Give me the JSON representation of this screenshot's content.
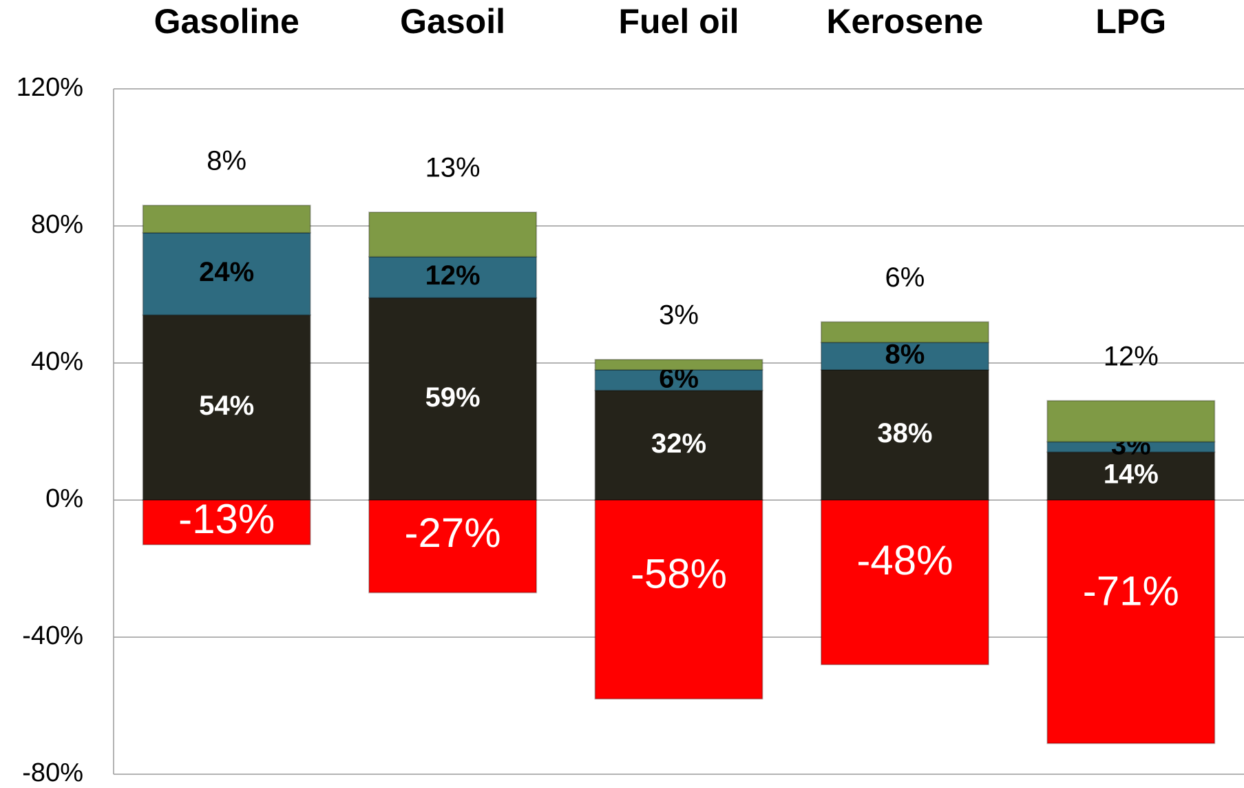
{
  "chart_data": {
    "type": "stacked_bar",
    "categories": [
      "Gasoline",
      "Gasoil",
      "Fuel oil",
      "Kerosene",
      "LPG"
    ],
    "series": [
      {
        "color": "#25231a",
        "values": [
          54,
          59,
          32,
          38,
          14
        ],
        "value_labels": [
          "54%",
          "59%",
          "32%",
          "38%",
          "14%"
        ]
      },
      {
        "color": "#2e6b80",
        "values": [
          24,
          12,
          6,
          8,
          3
        ],
        "value_labels": [
          "24%",
          "12%",
          "6%",
          "8%",
          "3%"
        ]
      },
      {
        "color": "#7f9a45",
        "values": [
          8,
          13,
          3,
          6,
          12
        ],
        "value_labels": [
          "8%",
          "13%",
          "3%",
          "6%",
          "12%"
        ]
      },
      {
        "color": "#ff0000",
        "values": [
          -13,
          -27,
          -58,
          -48,
          -71
        ],
        "value_labels": [
          "-13%",
          "-27%",
          "-58%",
          "-48%",
          "-71%"
        ]
      }
    ],
    "ylim": [
      -80,
      120
    ],
    "yticks": [
      {
        "value": -80,
        "label": "-80%"
      },
      {
        "value": -40,
        "label": "-40%"
      },
      {
        "value": 0,
        "label": "0%"
      },
      {
        "value": 40,
        "label": "40%"
      },
      {
        "value": 80,
        "label": "80%"
      },
      {
        "value": 120,
        "label": "120%"
      }
    ],
    "grid": true
  }
}
